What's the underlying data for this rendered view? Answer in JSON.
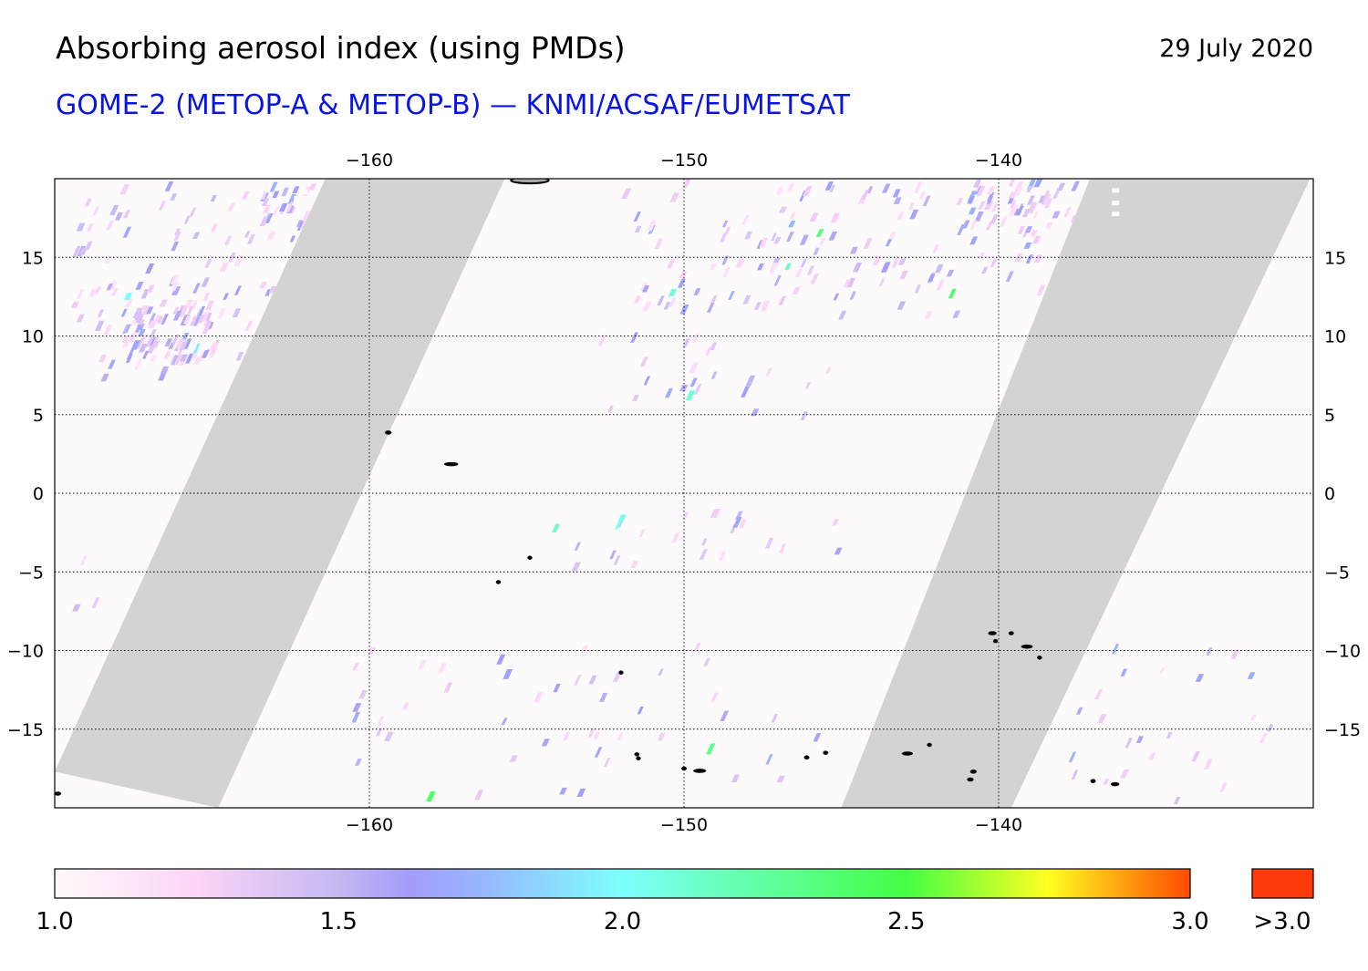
{
  "header": {
    "title": "Absorbing aerosol index (using PMDs)",
    "date": "29 July 2020",
    "subtitle": "GOME-2 (METOP-A & METOP-B) — KNMI/ACSAF/EUMETSAT",
    "subtitle_color": "#0a14e6"
  },
  "map": {
    "lon_range": [
      -170,
      -130
    ],
    "lat_range": [
      -20,
      20
    ],
    "lon_ticks": [
      -160,
      -150,
      -140
    ],
    "lat_ticks": [
      15,
      10,
      5,
      0,
      -5,
      -10,
      -15
    ],
    "lon_tick_labels": [
      "−160",
      "−150",
      "−140"
    ],
    "lat_tick_labels": [
      "15",
      "10",
      "5",
      "0",
      "−5",
      "−10",
      "−15"
    ],
    "gridlines": "dotted",
    "background_color": "#fdfafc",
    "no_data_color": "#d3d3d3",
    "coastline_color": "#000000",
    "no_data_swaths": [
      {
        "name": "gap-west",
        "polygon": [
          [
            -170,
            -17.7
          ],
          [
            -164.8,
            -20
          ],
          [
            -155.7,
            20
          ],
          [
            -161.4,
            20
          ]
        ]
      },
      {
        "name": "gap-east",
        "polygon": [
          [
            -145,
            -20
          ],
          [
            -139.6,
            -20
          ],
          [
            -130.1,
            20
          ],
          [
            -137.1,
            20
          ]
        ]
      }
    ],
    "islands": [
      {
        "name": "hawaii-big-island",
        "lon": -154.9,
        "lat": 19.9,
        "rlon": 0.6,
        "rlat": 0.2
      },
      {
        "name": "kiritimati",
        "lon": -157.4,
        "lat": 1.85,
        "rlon": 0.22,
        "rlat": 0.09
      },
      {
        "name": "tabuaeran",
        "lon": -159.4,
        "lat": 3.86,
        "rlon": 0.1,
        "rlat": 0.08
      },
      {
        "name": "malden-island",
        "lon": -154.9,
        "lat": -4.1,
        "rlon": 0.05,
        "rlat": 0.05
      },
      {
        "name": "starbuck-island",
        "lon": -155.9,
        "lat": -5.65,
        "rlon": 0.05,
        "rlat": 0.05
      },
      {
        "name": "caroline-island",
        "lon": -152.0,
        "lat": -11.4,
        "rlon": 0.04,
        "rlat": 0.05
      },
      {
        "name": "nuku-hiva",
        "lon": -140.2,
        "lat": -8.9,
        "rlon": 0.13,
        "rlat": 0.07
      },
      {
        "name": "ua-huka",
        "lon": -139.6,
        "lat": -8.9,
        "rlon": 0.08,
        "rlat": 0.05
      },
      {
        "name": "ua-pou",
        "lon": -140.1,
        "lat": -9.4,
        "rlon": 0.05,
        "rlat": 0.06
      },
      {
        "name": "hiva-oa",
        "lon": -139.1,
        "lat": -9.75,
        "rlon": 0.18,
        "rlat": 0.07
      },
      {
        "name": "fatu-hiva",
        "lon": -138.7,
        "lat": -10.45,
        "rlon": 0.05,
        "rlat": 0.05
      },
      {
        "name": "bora-bora",
        "lon": -151.5,
        "lat": -16.6,
        "rlon": 0.06,
        "rlat": 0.06
      },
      {
        "name": "raiatea",
        "lon": -151.45,
        "lat": -16.85,
        "rlon": 0.06,
        "rlat": 0.07
      },
      {
        "name": "tahiti",
        "lon": -149.5,
        "lat": -17.65,
        "rlon": 0.2,
        "rlat": 0.12
      },
      {
        "name": "moorea",
        "lon": -150.0,
        "lat": -17.5,
        "rlon": 0.08,
        "rlat": 0.05
      },
      {
        "name": "tuamotu-atoll-a",
        "lon": -146.1,
        "lat": -16.8,
        "rlon": 0.08,
        "rlat": 0.12
      },
      {
        "name": "tuamotu-atoll-b",
        "lon": -145.5,
        "lat": -16.5,
        "rlon": 0.08,
        "rlat": 0.05
      },
      {
        "name": "makemo",
        "lon": -142.9,
        "lat": -16.55,
        "rlon": 0.17,
        "rlat": 0.05
      },
      {
        "name": "tuamotu-atoll-c",
        "lon": -142.2,
        "lat": -16.0,
        "rlon": 0.04,
        "rlat": 0.05
      },
      {
        "name": "hao",
        "lon": -140.8,
        "lat": -17.7,
        "rlon": 0.1,
        "rlat": 0.1
      },
      {
        "name": "tuamotu-atoll-d",
        "lon": -140.9,
        "lat": -18.2,
        "rlon": 0.1,
        "rlat": 0.05
      },
      {
        "name": "tuamotu-atoll-e",
        "lon": -137.0,
        "lat": -18.3,
        "rlon": 0.08,
        "rlat": 0.05
      },
      {
        "name": "tuamotu-atoll-f",
        "lon": -136.3,
        "lat": -18.5,
        "rlon": 0.13,
        "rlat": 0.05
      },
      {
        "name": "sw-corner-island",
        "lon": -169.9,
        "lat": -19.1,
        "rlon": 0.1,
        "rlat": 0.07
      }
    ],
    "aerosol_clusters": [
      {
        "lon": [
          -169.5,
          -162.0
        ],
        "lat": [
          7.0,
          19.0
        ],
        "n": 110
      },
      {
        "lon": [
          -168.0,
          -165.0
        ],
        "lat": [
          8.0,
          11.5
        ],
        "n": 70
      },
      {
        "lon": [
          -163.5,
          -161.5
        ],
        "lat": [
          16.5,
          19.5
        ],
        "n": 25
      },
      {
        "lon": [
          -152.0,
          -137.5
        ],
        "lat": [
          11.0,
          19.5
        ],
        "n": 140
      },
      {
        "lon": [
          -141.0,
          -138.0
        ],
        "lat": [
          16.5,
          19.5
        ],
        "n": 35
      },
      {
        "lon": [
          -153.0,
          -145.0
        ],
        "lat": [
          4.5,
          10.0
        ],
        "n": 22
      },
      {
        "lon": [
          -155.0,
          -145.0
        ],
        "lat": [
          -5.0,
          -1.5
        ],
        "n": 22
      },
      {
        "lon": [
          -161.0,
          -147.0
        ],
        "lat": [
          -20.0,
          -10.0
        ],
        "n": 45
      },
      {
        "lon": [
          -138.0,
          -130.5
        ],
        "lat": [
          -20.0,
          -10.0
        ],
        "n": 25
      },
      {
        "lon": [
          -169.5,
          -165.0
        ],
        "lat": [
          -15.0,
          -2.0
        ],
        "n": 10
      }
    ],
    "aerosol_highlights": [
      {
        "lon": -167.8,
        "lat": 12.3,
        "value": 2.0
      },
      {
        "lon": -165.6,
        "lat": 8.9,
        "value": 1.95
      },
      {
        "lon": -150.5,
        "lat": 12.5,
        "value": 2.1
      },
      {
        "lon": -149.95,
        "lat": 5.9,
        "value": 2.1
      },
      {
        "lon": -148.6,
        "lat": 12.3,
        "value": 1.75
      },
      {
        "lon": -145.8,
        "lat": 16.3,
        "value": 2.35
      },
      {
        "lon": -146.8,
        "lat": 14.2,
        "value": 2.15
      },
      {
        "lon": -141.6,
        "lat": 12.4,
        "value": 2.4
      },
      {
        "lon": -148.2,
        "lat": 6.1,
        "value": 1.65
      },
      {
        "lon": -154.2,
        "lat": -2.5,
        "value": 2.15
      },
      {
        "lon": -152.1,
        "lat": -1.8,
        "value": 2.05
      },
      {
        "lon": -152.2,
        "lat": -2.3,
        "value": 2.0
      },
      {
        "lon": -149.3,
        "lat": -16.6,
        "value": 2.3
      },
      {
        "lon": -158.2,
        "lat": -19.6,
        "value": 2.4
      },
      {
        "lon": -145.9,
        "lat": -15.8,
        "value": 1.6
      },
      {
        "lon": -141.0,
        "lat": 18.4,
        "value": 1.65
      },
      {
        "lon": -143.6,
        "lat": 15.7,
        "value": 1.6
      },
      {
        "lon": -166.5,
        "lat": 19.2,
        "value": 1.6
      }
    ]
  },
  "colorbar": {
    "min": 1.0,
    "max": 3.0,
    "ticks": [
      1.0,
      1.5,
      2.0,
      2.5,
      3.0
    ],
    "tick_labels": [
      "1.0",
      "1.5",
      "2.0",
      "2.5",
      "3.0"
    ],
    "overflow_label": ">3.0",
    "overflow_color": "#ff3a0a",
    "stops": [
      {
        "value": 1.0,
        "color": "#fffafa"
      },
      {
        "value": 1.25,
        "color": "#fcd4f7"
      },
      {
        "value": 1.5,
        "color": "#c4b8f2"
      },
      {
        "value": 1.625,
        "color": "#a29cfb"
      },
      {
        "value": 1.75,
        "color": "#98b6fd"
      },
      {
        "value": 2.0,
        "color": "#7dfffd"
      },
      {
        "value": 2.5,
        "color": "#44ff44"
      },
      {
        "value": 2.75,
        "color": "#ffff22"
      },
      {
        "value": 3.0,
        "color": "#ff4a00"
      }
    ]
  }
}
